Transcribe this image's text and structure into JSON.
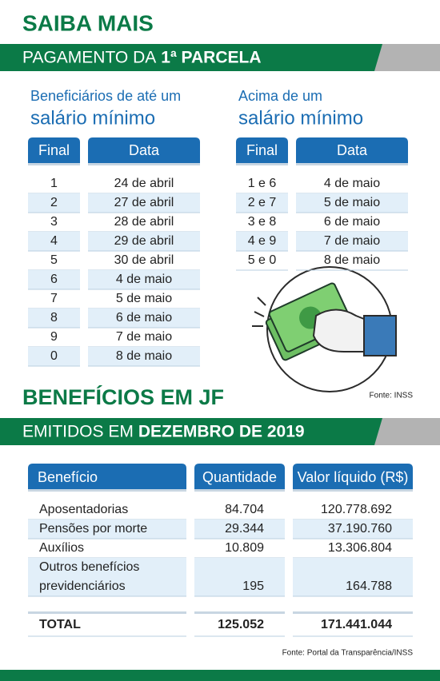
{
  "header": {
    "title": "SAIBA MAIS",
    "banner": [
      "PAGAMENTO DA",
      "1ª PARCELA"
    ]
  },
  "schedule_low": {
    "heading": [
      "Beneficiários de até um",
      "salário mínimo"
    ],
    "columns": [
      "Final",
      "Data"
    ],
    "rows": [
      [
        "1",
        "24 de abril"
      ],
      [
        "2",
        "27 de abril"
      ],
      [
        "3",
        "28 de abril"
      ],
      [
        "4",
        "29 de abril"
      ],
      [
        "5",
        "30 de abril"
      ],
      [
        "6",
        "4 de maio"
      ],
      [
        "7",
        "5 de maio"
      ],
      [
        "8",
        "6 de maio"
      ],
      [
        "9",
        "7 de maio"
      ],
      [
        "0",
        "8 de maio"
      ]
    ]
  },
  "schedule_high": {
    "heading": [
      "Acima de um",
      "salário mínimo"
    ],
    "columns": [
      "Final",
      "Data"
    ],
    "rows": [
      [
        "1 e 6",
        "4 de maio"
      ],
      [
        "2 e 7",
        "5 de maio"
      ],
      [
        "3 e 8",
        "6 de maio"
      ],
      [
        "4 e 9",
        "7 de maio"
      ],
      [
        "5 e 0",
        "8 de maio"
      ]
    ]
  },
  "source1": "Fonte: INSS",
  "section2": {
    "title": "BENEFÍCIOS EM JF",
    "banner": [
      "EMITIDOS EM",
      "DEZEMBRO DE 2019"
    ]
  },
  "benefits": {
    "columns": [
      "Benefício",
      "Quantidade",
      "Valor líquido (R$)"
    ],
    "rows": [
      [
        "Aposentadorias",
        "84.704",
        "120.778.692"
      ],
      [
        "Pensões por morte",
        "29.344",
        "37.190.760"
      ],
      [
        "Auxílios",
        "10.809",
        "13.306.804"
      ],
      [
        [
          "Outros benefícios",
          "previdenciários"
        ],
        "195",
        "164.788"
      ]
    ],
    "total": [
      "TOTAL",
      "125.052",
      "171.441.044"
    ]
  },
  "source2": "Fonte: Portal da Transparência/INSS"
}
